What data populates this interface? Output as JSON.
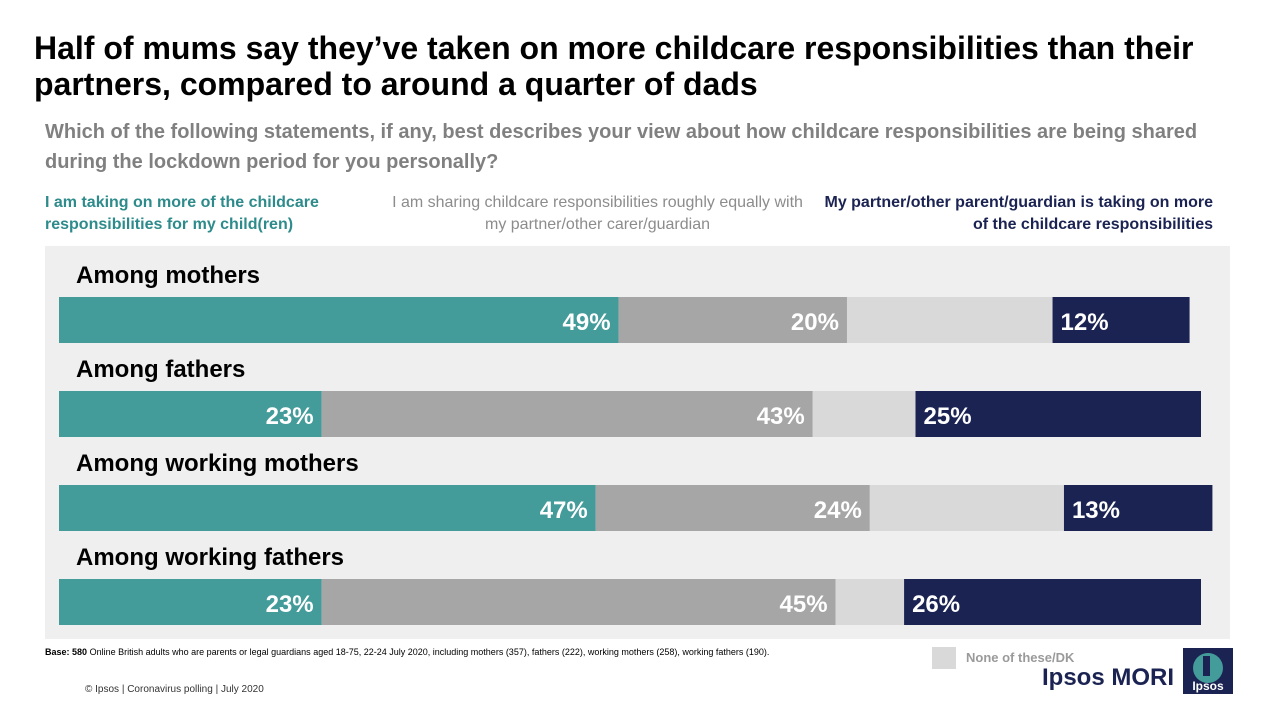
{
  "title": "Half of mums say they’ve taken on more childcare responsibilities than their partners, compared to around a quarter of dads",
  "subtitle": "Which of the following statements, if any, best describes your view about how childcare responsibilities are being shared during the lockdown period for you personally?",
  "legend": {
    "more_me": "I am taking on more of the childcare responsibilities for my child(ren)",
    "shared": "I am sharing childcare responsibilities roughly equally with my partner/other carer/guardian",
    "more_partner": "My partner/other parent/guardian is taking on more of the childcare responsibilities",
    "none_dk": "None of these/DK"
  },
  "colors": {
    "more_me": "#439b9a",
    "shared": "#a6a6a6",
    "none_dk": "#d9d9d9",
    "more_partner": "#1b2352",
    "panel": "#efefef"
  },
  "chart_data": {
    "type": "bar",
    "orientation": "horizontal-stacked",
    "categories": [
      "Among mothers",
      "Among fathers",
      "Among working mothers",
      "Among working fathers"
    ],
    "series": [
      {
        "name": "I am taking on more of the childcare responsibilities for my child(ren)",
        "key": "more_me",
        "values": [
          49,
          23,
          47,
          23
        ],
        "labels": [
          "49%",
          "23%",
          "47%",
          "23%"
        ]
      },
      {
        "name": "I am sharing childcare responsibilities roughly equally with my partner/other carer/guardian",
        "key": "shared",
        "values": [
          20,
          43,
          24,
          45
        ],
        "labels": [
          "20%",
          "43%",
          "24%",
          "45%"
        ]
      },
      {
        "name": "None of these/DK",
        "key": "none_dk",
        "values": [
          18,
          9,
          17,
          6
        ],
        "labels": [
          "",
          "",
          "",
          ""
        ]
      },
      {
        "name": "My partner/other parent/guardian is taking on more of the childcare responsibilities",
        "key": "more_partner",
        "values": [
          12,
          25,
          13,
          26
        ],
        "labels": [
          "12%",
          "25%",
          "13%",
          "26%"
        ]
      }
    ],
    "xlim": [
      0,
      100
    ]
  },
  "base_note": {
    "label": "Base:",
    "number": "580",
    "text": " Online British adults who are parents or legal guardians aged 18-75, 22-24 July 2020, including mothers (357), fathers (222), working mothers (258), working fathers (190)."
  },
  "footer": "© Ipsos | Coronavirus polling | July 2020",
  "brand": {
    "name": "Ipsos MORI",
    "logo_text": "Ipsos"
  }
}
